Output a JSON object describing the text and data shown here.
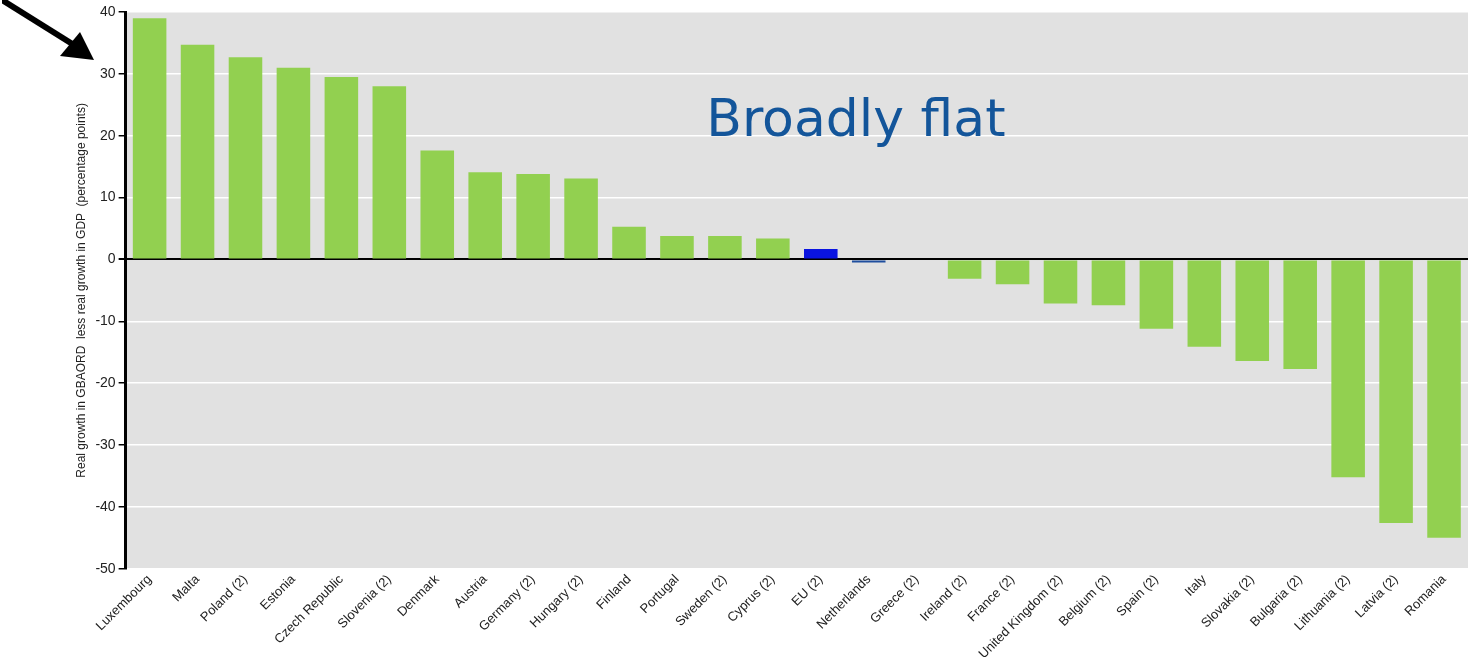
{
  "chart_data": {
    "type": "bar",
    "ylabel": "Real growth in GBAORD  less real growth in GDP  (percentage points)",
    "categories": [
      "Luxembourg",
      "Malta",
      "Poland (2)",
      "Estonia",
      "Czech Republic",
      "Slovenia (2)",
      "Denmark",
      "Austria",
      "Germany (2)",
      "Hungary (2)",
      "Finland",
      "Portugal",
      "Sweden (2)",
      "Cyprus (2)",
      "EU (2)",
      "Netherlands",
      "Greece (2)",
      "Ireland (2)",
      "France (2)",
      "United Kingdom (2)",
      "Belgium (2)",
      "Spain (2)",
      "Italy",
      "Slovakia (2)",
      "Bulgaria (2)",
      "Lithuania (2)",
      "Latvia (2)",
      "Romania"
    ],
    "values": [
      39,
      34.7,
      32.7,
      31,
      29.5,
      28,
      17.6,
      14.1,
      13.8,
      13.1,
      5.3,
      3.8,
      3.8,
      3.4,
      1.7,
      -0.5,
      null,
      -3.1,
      -4,
      -7.1,
      -7.4,
      -11.2,
      -14.1,
      -16.4,
      -17.7,
      -35.2,
      -42.6,
      -45
    ],
    "colors": [
      "#92d050",
      "#92d050",
      "#92d050",
      "#92d050",
      "#92d050",
      "#92d050",
      "#92d050",
      "#92d050",
      "#92d050",
      "#92d050",
      "#92d050",
      "#92d050",
      "#92d050",
      "#92d050",
      "#0a14e0",
      "#1f4e9e",
      "#92d050",
      "#92d050",
      "#92d050",
      "#92d050",
      "#92d050",
      "#92d050",
      "#92d050",
      "#92d050",
      "#92d050",
      "#92d050",
      "#92d050",
      "#92d050"
    ],
    "ylim": [
      -50,
      40
    ],
    "yticks": [
      -50,
      -40,
      -30,
      -20,
      -10,
      0,
      10,
      20,
      30,
      40
    ],
    "grid": "y",
    "legend": false,
    "annotations": [
      "Broadly flat"
    ]
  }
}
